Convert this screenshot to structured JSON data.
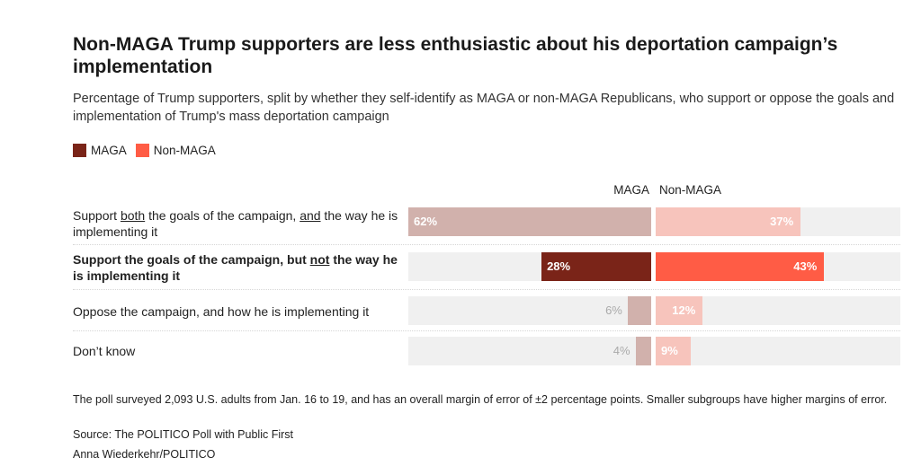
{
  "title": "Non-MAGA Trump supporters are less enthusiastic about his deportation campaign’s implementation",
  "subtitle": "Percentage of Trump supporters, split by whether they self-identify as MAGA or non-MAGA Republicans, who support or oppose the goals and implementation of Trump's mass deportation campaign",
  "legend": [
    {
      "label": "MAGA",
      "color": "#7a2418"
    },
    {
      "label": "Non-MAGA",
      "color": "#ff5c45"
    }
  ],
  "column_headers": {
    "maga": "MAGA",
    "nonmaga": "Non-MAGA"
  },
  "rows": [
    {
      "label_parts": [
        {
          "text": "Support "
        },
        {
          "text": "both",
          "u": true
        },
        {
          "text": " the goals of the campaign, "
        },
        {
          "text": "and",
          "u": true
        },
        {
          "text": " the way he is implementing it"
        }
      ],
      "bold": false
    },
    {
      "label_parts": [
        {
          "text": "Support the goals of the campaign, but "
        },
        {
          "text": "not",
          "u": true
        },
        {
          "text": " the way he is implementing it"
        }
      ],
      "bold": true
    },
    {
      "label_parts": [
        {
          "text": "Oppose the campaign, and how he is implementing it"
        }
      ],
      "bold": false
    },
    {
      "label_parts": [
        {
          "text": "Don’t know"
        }
      ],
      "bold": false
    }
  ],
  "chart_data": {
    "type": "bar",
    "orientation": "horizontal-diverging",
    "categories": [
      "Support both the goals of the campaign, and the way he is implementing it",
      "Support the goals of the campaign, but not the way he is implementing it",
      "Oppose the campaign, and how he is implementing it",
      "Don’t know"
    ],
    "series": [
      {
        "name": "MAGA",
        "values": [
          62,
          28,
          6,
          4
        ],
        "labels": [
          "62%",
          "28%",
          "6%",
          "4%"
        ]
      },
      {
        "name": "Non-MAGA",
        "values": [
          37,
          43,
          12,
          9
        ],
        "labels": [
          "37%",
          "43%",
          "12%",
          "9%"
        ]
      }
    ],
    "highlighted_category_index": 1,
    "colors": {
      "maga_highlight": "#7a2418",
      "nonmaga_highlight": "#ff5c45",
      "maga_muted": "#d1b1ac",
      "nonmaga_muted": "#f7c4bc",
      "track": "#f0f0f0",
      "label_on_muted": "#ffffff",
      "label_outside": "#aaaaaa"
    },
    "xlim": [
      0,
      100
    ],
    "legend_position": "top-left"
  },
  "footer": {
    "note": "The poll surveyed 2,093 U.S. adults from Jan. 16 to 19, and has an overall margin of error of ±2 percentage points. Smaller subgroups have higher margins of error.",
    "source": "Source: The POLITICO Poll with Public First",
    "credit": "Anna Wiederkehr/POLITICO"
  }
}
